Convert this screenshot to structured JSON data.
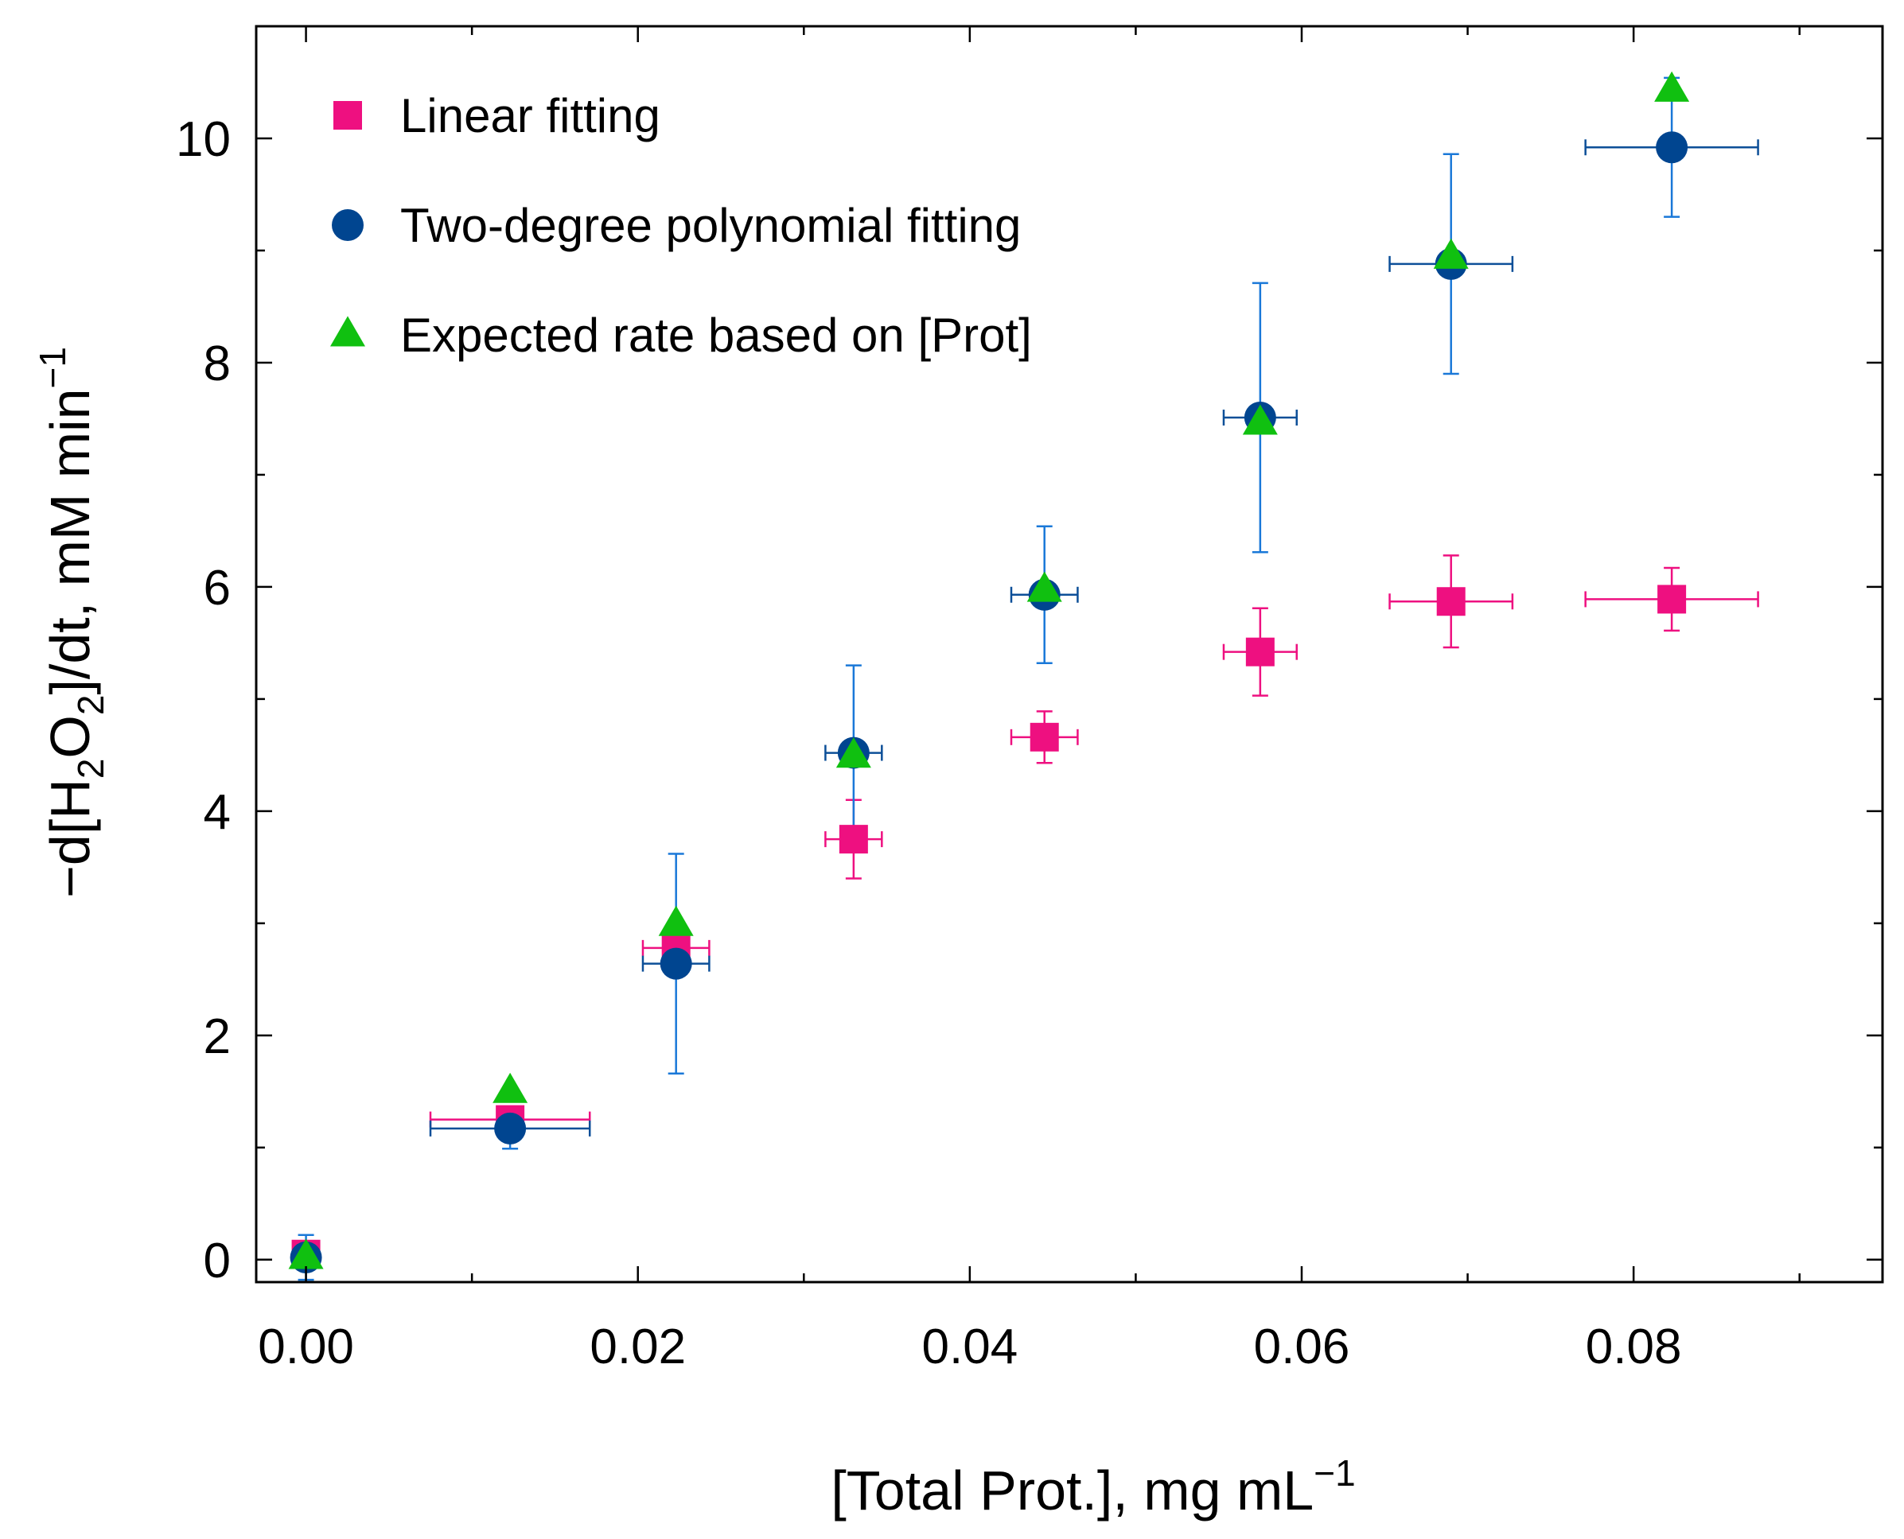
{
  "chart_data": {
    "type": "scatter",
    "title": "",
    "xlabel": {
      "main": "[Total Prot.], mg mL",
      "sup": "−1"
    },
    "ylabel": {
      "pre": "−d[H",
      "sub1": "2",
      "mid": "O",
      "sub2": "2",
      "post": "]/dt, mM min",
      "sup": "−1"
    },
    "xlim": [
      -0.003,
      0.095
    ],
    "ylim": [
      -0.2,
      11.0
    ],
    "xticks": [
      0.0,
      0.02,
      0.04,
      0.06,
      0.08
    ],
    "xtick_labels": [
      "0.00",
      "0.02",
      "0.04",
      "0.06",
      "0.08"
    ],
    "xminor": [
      0.01,
      0.03,
      0.05,
      0.07,
      0.09
    ],
    "yticks": [
      0,
      2,
      4,
      6,
      8,
      10
    ],
    "ytick_labels": [
      "0",
      "2",
      "4",
      "6",
      "8",
      "10"
    ],
    "yminor": [
      1,
      3,
      5,
      7,
      9
    ],
    "grid": false,
    "legend_position": "top-left",
    "series": [
      {
        "name": "Linear fitting",
        "marker": "square",
        "color": "#ee1080",
        "errcolor": "#ee1080",
        "points": [
          {
            "x": 0.0,
            "y": 0.05,
            "xerr": 0.0,
            "yerr": 0.05
          },
          {
            "x": 0.0123,
            "y": 1.25,
            "xerr": 0.0048,
            "yerr": 0.0
          },
          {
            "x": 0.0223,
            "y": 2.78,
            "xerr": 0.002,
            "yerr": 0.0
          },
          {
            "x": 0.033,
            "y": 3.75,
            "xerr": 0.0017,
            "yerr": 0.35
          },
          {
            "x": 0.0445,
            "y": 4.66,
            "xerr": 0.002,
            "yerr": 0.23
          },
          {
            "x": 0.0575,
            "y": 5.42,
            "xerr": 0.0022,
            "yerr": 0.39
          },
          {
            "x": 0.069,
            "y": 5.87,
            "xerr": 0.0037,
            "yerr": 0.41
          },
          {
            "x": 0.0823,
            "y": 5.89,
            "xerr": 0.0052,
            "yerr": 0.28
          }
        ]
      },
      {
        "name": "Two-degree polynomial fitting",
        "marker": "circle",
        "color": "#004590",
        "errcolor": "#1a78d8",
        "xerrcolor": "#0c4f98",
        "points": [
          {
            "x": 0.0,
            "y": 0.02,
            "xerr": 0.0,
            "yerr": 0.2
          },
          {
            "x": 0.0123,
            "y": 1.17,
            "xerr": 0.0048,
            "yerr": 0.18
          },
          {
            "x": 0.0223,
            "y": 2.64,
            "xerr": 0.002,
            "yerr": 0.98
          },
          {
            "x": 0.033,
            "y": 4.52,
            "xerr": 0.0017,
            "yerr": 0.78
          },
          {
            "x": 0.0445,
            "y": 5.93,
            "xerr": 0.002,
            "yerr": 0.61
          },
          {
            "x": 0.0575,
            "y": 7.51,
            "xerr": 0.0022,
            "yerr": 1.2
          },
          {
            "x": 0.069,
            "y": 8.88,
            "xerr": 0.0037,
            "yerr": 0.98
          },
          {
            "x": 0.0823,
            "y": 9.92,
            "xerr": 0.0052,
            "yerr": 0.62
          }
        ]
      },
      {
        "name": "Expected rate based on [Prot]",
        "marker": "triangle",
        "color": "#10c010",
        "points": [
          {
            "x": 0.0,
            "y": 0.02
          },
          {
            "x": 0.0123,
            "y": 1.5
          },
          {
            "x": 0.0223,
            "y": 2.99
          },
          {
            "x": 0.033,
            "y": 4.49
          },
          {
            "x": 0.0445,
            "y": 5.97
          },
          {
            "x": 0.0575,
            "y": 7.46
          },
          {
            "x": 0.069,
            "y": 8.94
          },
          {
            "x": 0.0823,
            "y": 10.43
          }
        ]
      }
    ]
  }
}
